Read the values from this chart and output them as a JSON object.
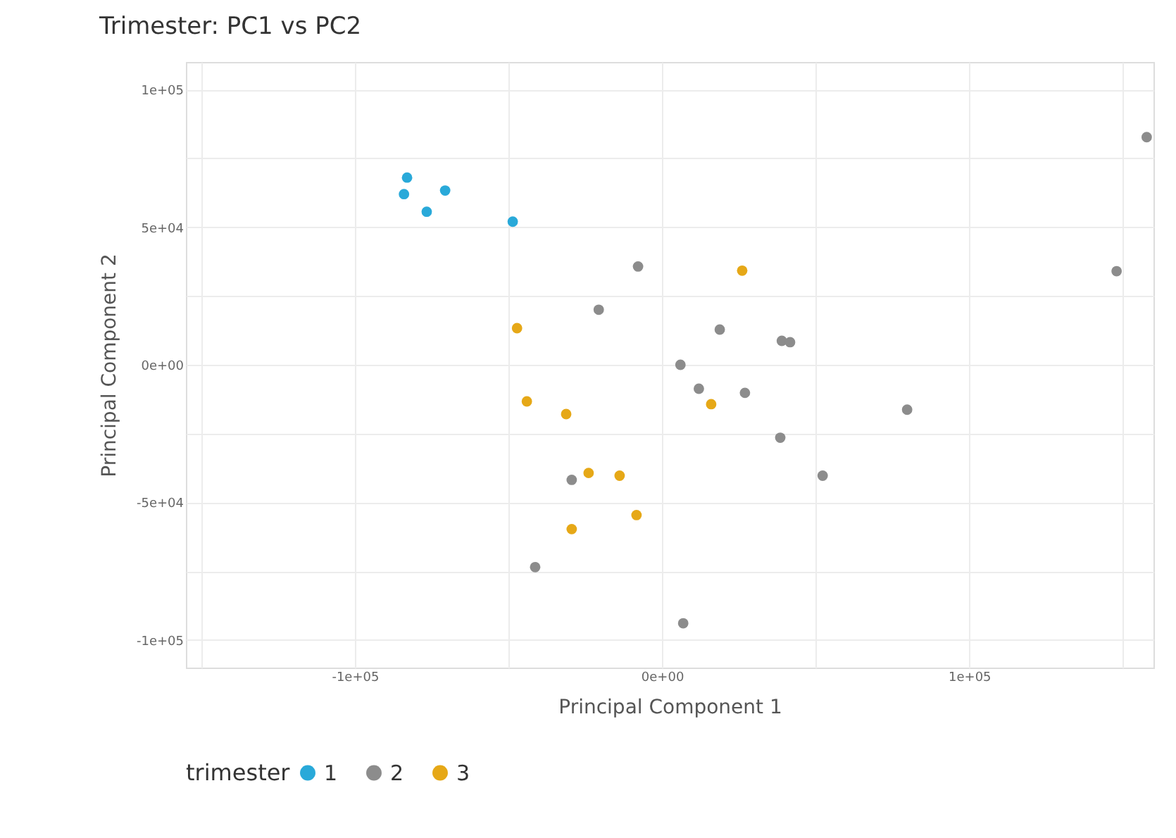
{
  "chart_data": {
    "type": "scatter",
    "title": "Trimester: PC1 vs PC2",
    "xlabel": "Principal Component 1",
    "ylabel": "Principal Component 2",
    "legend_title": "trimester",
    "legend": "bottom",
    "grid": true,
    "marker": "circle",
    "xlim": [
      -155000,
      160000
    ],
    "ylim": [
      -110000,
      110000
    ],
    "xticks": [
      {
        "value": -150000,
        "label": null
      },
      {
        "value": -100000,
        "label": "-1e+05"
      },
      {
        "value": -50000,
        "label": null
      },
      {
        "value": 0,
        "label": "0e+00"
      },
      {
        "value": 50000,
        "label": null
      },
      {
        "value": 100000,
        "label": "1e+05"
      },
      {
        "value": 150000,
        "label": null
      }
    ],
    "yticks": [
      {
        "value": -100000,
        "label": "-1e+05"
      },
      {
        "value": -75000,
        "label": null
      },
      {
        "value": -50000,
        "label": "-5e+04"
      },
      {
        "value": -25000,
        "label": null
      },
      {
        "value": 0,
        "label": "0e+00"
      },
      {
        "value": 25000,
        "label": null
      },
      {
        "value": 50000,
        "label": "5e+04"
      },
      {
        "value": 75000,
        "label": null
      },
      {
        "value": 100000,
        "label": "1e+05"
      }
    ],
    "series": [
      {
        "name": "1",
        "color": "#29a9d9",
        "x": [
          -83000,
          -84000,
          -70600,
          -76600,
          -48600
        ],
        "values": [
          68000,
          62000,
          63300,
          55600,
          52000
        ]
      },
      {
        "name": "2",
        "color": "#8c8c8c",
        "x": [
          157800,
          148000,
          -7800,
          -20600,
          18800,
          39000,
          41700,
          6000,
          12000,
          27000,
          79800,
          38500,
          52300,
          -29400,
          -41300,
          6900
        ],
        "values": [
          82700,
          34000,
          35700,
          20000,
          12800,
          8700,
          8200,
          0,
          -8700,
          -10200,
          -16300,
          -26500,
          -40300,
          -41800,
          -73500,
          -93900
        ]
      },
      {
        "name": "3",
        "color": "#e6a817",
        "x": [
          26100,
          16000,
          -47200,
          -44000,
          -31200,
          -23900,
          -13800,
          -8300,
          -29400
        ],
        "values": [
          34200,
          -14300,
          13300,
          -13300,
          -17900,
          -39300,
          -40300,
          -54600,
          -59700
        ]
      }
    ]
  }
}
